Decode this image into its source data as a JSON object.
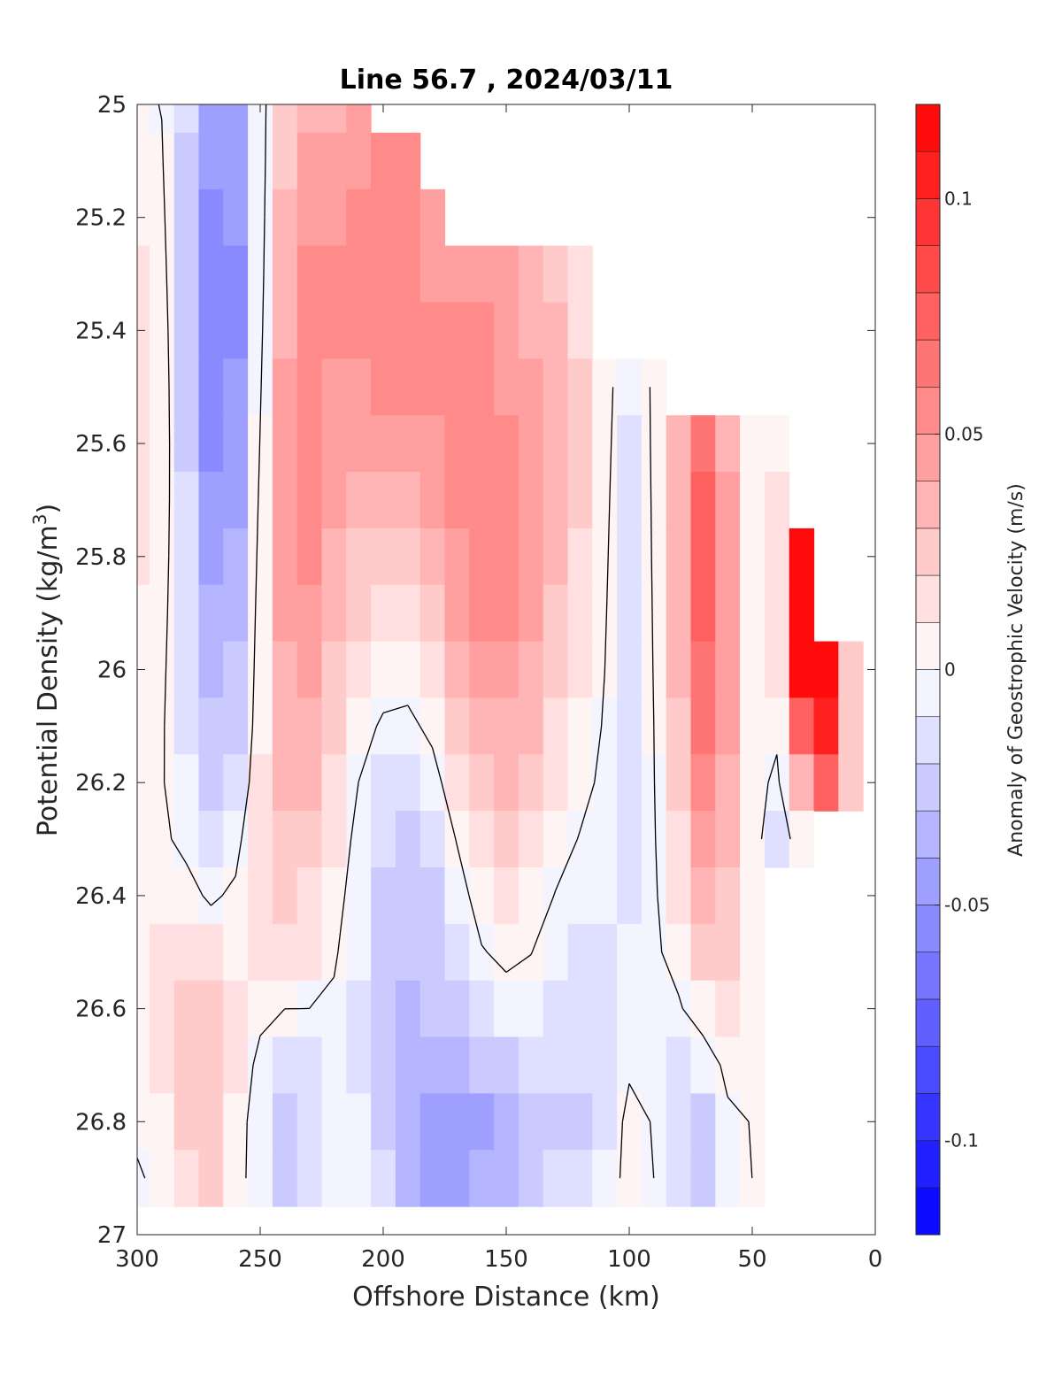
{
  "chart_data": {
    "type": "heatmap",
    "title": "Line 56.7 , 2024/03/11",
    "xlabel": "Offshore Distance (km)",
    "ylabel_main": "Potential Density (kg/m",
    "ylabel_sup": "3",
    "ylabel_close": ")",
    "colorbar_label": "Anomaly of Geostrophic Velocity (m/s)",
    "xlim": [
      300,
      0
    ],
    "ylim": [
      25,
      27
    ],
    "y_reversed": true,
    "x_ticks": [
      300,
      250,
      200,
      150,
      100,
      50,
      0
    ],
    "x_tick_labels": [
      "300",
      "250",
      "200",
      "150",
      "100",
      "50",
      "0"
    ],
    "y_ticks": [
      25,
      25.2,
      25.4,
      25.6,
      25.8,
      26,
      26.2,
      26.4,
      26.6,
      26.8,
      27
    ],
    "y_tick_labels": [
      "25",
      "25.2",
      "25.4",
      "25.6",
      "25.8",
      "26",
      "26.2",
      "26.4",
      "26.6",
      "26.8",
      "27"
    ],
    "clim": [
      -0.12,
      0.12
    ],
    "colorbar_ticks": [
      0.1,
      0.05,
      0,
      -0.05,
      -0.1
    ],
    "colorbar_tick_labels": [
      "0.1",
      "0.05",
      "0",
      "-0.05",
      "-0.1"
    ],
    "colormap": {
      "negative": "#0000ff",
      "zero": "#ffffff",
      "positive": "#ff0000",
      "levels": 24
    },
    "grid": false,
    "contour_level": 0,
    "contour_color": "#000000",
    "x": [
      300,
      290,
      280,
      270,
      260,
      250,
      240,
      230,
      220,
      210,
      200,
      190,
      180,
      170,
      160,
      150,
      140,
      130,
      120,
      110,
      100,
      90,
      80,
      70,
      60,
      50,
      40,
      30,
      20,
      10
    ],
    "y": [
      25.0,
      25.1,
      25.2,
      25.3,
      25.4,
      25.5,
      25.6,
      25.7,
      25.8,
      25.9,
      26.0,
      26.1,
      26.2,
      26.3,
      26.4,
      26.5,
      26.6,
      26.7,
      26.8,
      26.9
    ],
    "x_max_by_depth": [
      205,
      185,
      175,
      115,
      115,
      85,
      40,
      35,
      30,
      25,
      10,
      10,
      10,
      22,
      50,
      50,
      50,
      50,
      50,
      50
    ],
    "features": [
      {
        "x": 295,
        "y": 25.55,
        "sx": 6,
        "sy": 0.32,
        "value": 0.02
      },
      {
        "x": 292,
        "y": 26.9,
        "sx": 6,
        "sy": 0.12,
        "value": -0.01
      },
      {
        "x": 265,
        "y": 25.3,
        "sx": 11,
        "sy": 0.45,
        "value": -0.06
      },
      {
        "x": 266,
        "y": 26.05,
        "sx": 10,
        "sy": 0.35,
        "value": -0.02
      },
      {
        "x": 275,
        "y": 26.82,
        "sx": 13,
        "sy": 0.25,
        "value": 0.022
      },
      {
        "x": 270,
        "y": 26.7,
        "sx": 5,
        "sy": 0.12,
        "value": 0.008
      },
      {
        "x": 232,
        "y": 25.45,
        "sx": 13,
        "sy": 0.5,
        "value": 0.045
      },
      {
        "x": 237,
        "y": 26.1,
        "sx": 12,
        "sy": 0.4,
        "value": 0.022
      },
      {
        "x": 254,
        "y": 26.35,
        "sx": 6,
        "sy": 0.1,
        "value": 0.01
      },
      {
        "x": 273,
        "y": 26.55,
        "sx": 18,
        "sy": 0.14,
        "value": 0.01
      },
      {
        "x": 238,
        "y": 26.82,
        "sx": 11,
        "sy": 0.18,
        "value": -0.03
      },
      {
        "x": 200,
        "y": 25.25,
        "sx": 15,
        "sy": 0.45,
        "value": 0.05
      },
      {
        "x": 162,
        "y": 25.55,
        "sx": 20,
        "sy": 0.48,
        "value": 0.05
      },
      {
        "x": 155,
        "y": 26.05,
        "sx": 15,
        "sy": 0.32,
        "value": 0.022
      },
      {
        "x": 128,
        "y": 25.6,
        "sx": 12,
        "sy": 0.35,
        "value": 0.02
      },
      {
        "x": 185,
        "y": 26.45,
        "sx": 18,
        "sy": 0.38,
        "value": -0.035
      },
      {
        "x": 182,
        "y": 26.88,
        "sx": 11,
        "sy": 0.12,
        "value": -0.025
      },
      {
        "x": 155,
        "y": 26.85,
        "sx": 13,
        "sy": 0.15,
        "value": -0.035
      },
      {
        "x": 120,
        "y": 26.75,
        "sx": 16,
        "sy": 0.28,
        "value": -0.02
      },
      {
        "x": 100,
        "y": 25.85,
        "sx": 6,
        "sy": 0.38,
        "value": -0.018
      },
      {
        "x": 100,
        "y": 26.85,
        "sx": 7,
        "sy": 0.14,
        "value": 0.015
      },
      {
        "x": 70,
        "y": 25.75,
        "sx": 9,
        "sy": 0.35,
        "value": 0.07
      },
      {
        "x": 65,
        "y": 26.3,
        "sx": 8,
        "sy": 0.3,
        "value": 0.03
      },
      {
        "x": 72,
        "y": 26.82,
        "sx": 8,
        "sy": 0.15,
        "value": -0.03
      },
      {
        "x": 28,
        "y": 25.85,
        "sx": 6,
        "sy": 0.2,
        "value": 0.12
      },
      {
        "x": 20,
        "y": 26.05,
        "sx": 7,
        "sy": 0.2,
        "value": 0.08
      },
      {
        "x": 35,
        "y": 26.5,
        "sx": 5,
        "sy": 0.25,
        "value": -0.03
      }
    ]
  }
}
